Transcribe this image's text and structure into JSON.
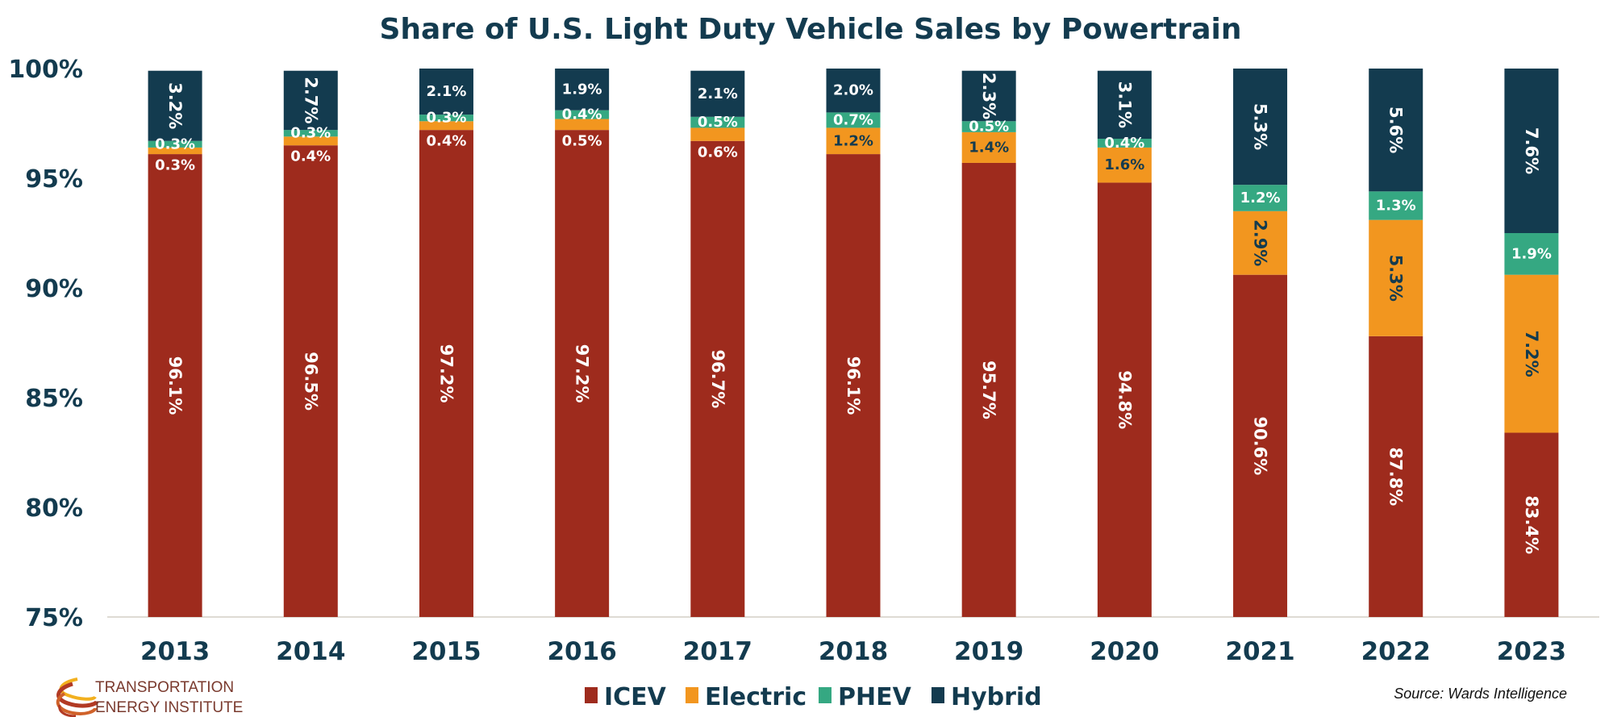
{
  "chart_data": {
    "type": "bar",
    "stacked": true,
    "title": "Share of U.S. Light Duty Vehicle Sales by Powertrain",
    "xlabel": "",
    "ylabel": "",
    "ylim": [
      75,
      100
    ],
    "yticks": [
      75,
      80,
      85,
      90,
      95,
      100
    ],
    "ytick_labels": [
      "75%",
      "80%",
      "85%",
      "90%",
      "95%",
      "100%"
    ],
    "grid": false,
    "legend_position": "bottom-center",
    "categories": [
      "2013",
      "2014",
      "2015",
      "2016",
      "2017",
      "2018",
      "2019",
      "2020",
      "2021",
      "2022",
      "2023"
    ],
    "series": [
      {
        "name": "ICEV",
        "color": "#9E2B1D",
        "values": [
          96.1,
          96.5,
          97.2,
          97.2,
          96.7,
          96.1,
          95.7,
          94.8,
          90.6,
          87.8,
          83.4
        ],
        "labels": [
          "96.1%",
          "96.5%",
          "97.2%",
          "97.2%",
          "96.7%",
          "96.1%",
          "95.7%",
          "94.8%",
          "90.6%",
          "87.8%",
          "83.4%"
        ]
      },
      {
        "name": "Electric",
        "color": "#F2961F",
        "values": [
          0.3,
          0.4,
          0.4,
          0.5,
          0.6,
          1.2,
          1.4,
          1.6,
          2.9,
          5.3,
          7.2
        ],
        "labels": [
          "0.3%",
          "0.4%",
          "0.4%",
          "0.5%",
          "0.6%",
          "1.2%",
          "1.4%",
          "1.6%",
          "2.9%",
          "5.3%",
          "7.2%"
        ]
      },
      {
        "name": "PHEV",
        "color": "#35A882",
        "values": [
          0.3,
          0.3,
          0.3,
          0.4,
          0.5,
          0.7,
          0.5,
          0.4,
          1.2,
          1.3,
          1.9
        ],
        "labels": [
          "0.3%",
          "0.3%",
          "0.3%",
          "0.4%",
          "0.5%",
          "0.7%",
          "0.5%",
          "0.4%",
          "1.2%",
          "1.3%",
          "1.9%"
        ]
      },
      {
        "name": "Hybrid",
        "color": "#133B4F",
        "values": [
          3.2,
          2.7,
          2.1,
          1.9,
          2.1,
          2.0,
          2.3,
          3.1,
          5.3,
          5.6,
          7.6
        ],
        "labels": [
          "3.2%",
          "2.7%",
          "2.1%",
          "1.9%",
          "2.1%",
          "2.0%",
          "2.3%",
          "3.1%",
          "5.3%",
          "5.6%",
          "7.6%"
        ]
      }
    ],
    "text_colors": {
      "dark": "#133B4F",
      "light": "#FFFFFF"
    },
    "axis_color": "#133B4F"
  },
  "legend": {
    "items": [
      {
        "label": "ICEV",
        "color": "#9E2B1D"
      },
      {
        "label": "Electric",
        "color": "#F2961F"
      },
      {
        "label": "PHEV",
        "color": "#35A882"
      },
      {
        "label": "Hybrid",
        "color": "#133B4F"
      }
    ]
  },
  "source": "Source: Wards Intelligence",
  "logo": {
    "line1": "TRANSPORTATION",
    "line2": "ENERGY INSTITUTE",
    "text_color": "#7A3A2E"
  }
}
